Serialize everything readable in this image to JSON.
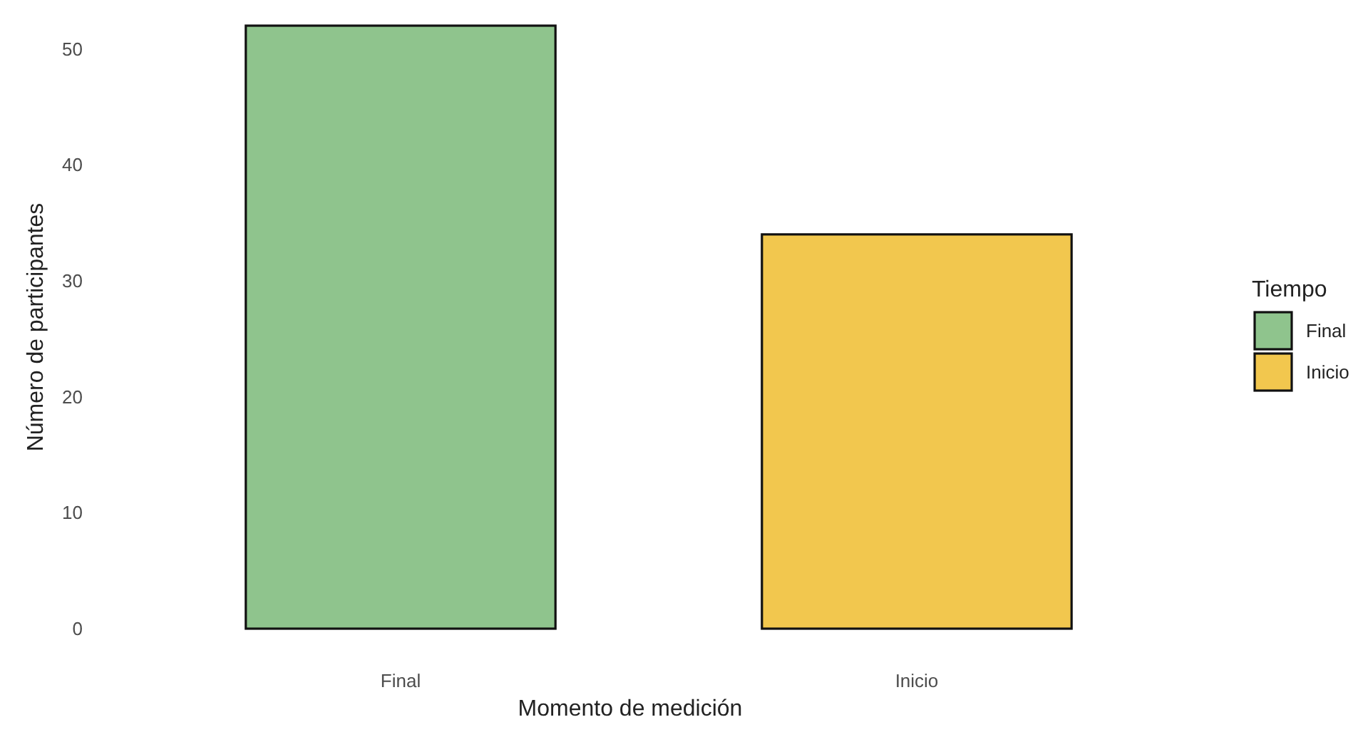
{
  "chart_data": {
    "type": "bar",
    "xlabel": "Momento de medición",
    "ylabel": "Número de participantes",
    "legend_title": "Tiempo",
    "categories": [
      "Final",
      "Inicio"
    ],
    "series": [
      {
        "name": "Final",
        "color": "#8fc48d",
        "values": [
          52,
          null
        ]
      },
      {
        "name": "Inicio",
        "color": "#f2c74e",
        "values": [
          null,
          34
        ]
      }
    ],
    "ylim": [
      0,
      52
    ],
    "yticks": [
      0,
      10,
      20,
      30,
      40,
      50
    ],
    "grid": false,
    "legend": "right"
  }
}
